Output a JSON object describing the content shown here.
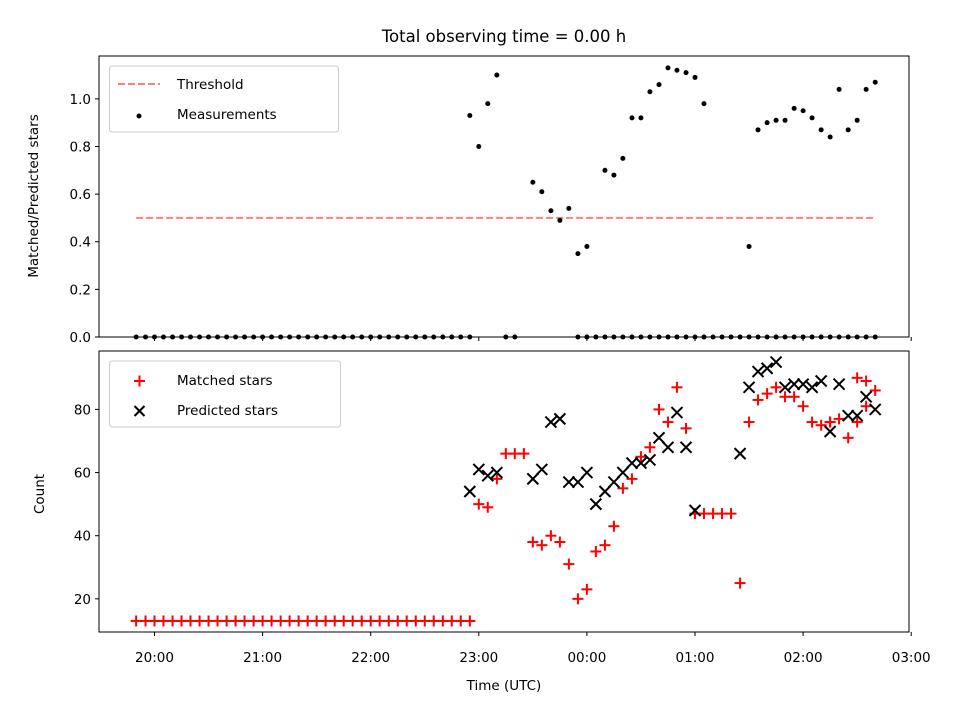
{
  "chart_data": [
    {
      "type": "scatter",
      "panel": "top",
      "title": "Total observing time = 0.00 h",
      "xlabel": "",
      "ylabel": "Matched/Predicted stars",
      "x_unit": "hours since 20:00 UTC",
      "xlim": [
        -0.42,
        7.0
      ],
      "ylim": [
        0.0,
        1.18
      ],
      "yticks": [
        0.0,
        0.2,
        0.4,
        0.6,
        0.8,
        1.0
      ],
      "ytick_labels": [
        "0.0",
        "0.2",
        "0.4",
        "0.6",
        "0.8",
        "1.0"
      ],
      "xtick_labels_visible": false,
      "grid": false,
      "legend": {
        "placement": "upper-left",
        "entries": [
          {
            "label": "Threshold",
            "style": "dashed-line",
            "color": "#ff7f7f"
          },
          {
            "label": "Measurements",
            "style": "dot",
            "color": "#000000"
          }
        ]
      },
      "threshold": {
        "name": "Threshold",
        "value": 0.5,
        "x_range": [
          -0.17,
          6.67
        ],
        "color": "#ff7f7f"
      },
      "series": [
        {
          "name": "Measurements",
          "color": "#000000",
          "marker": "dot",
          "x": [
            -0.17,
            -0.083,
            0.0,
            0.083,
            0.167,
            0.25,
            0.333,
            0.417,
            0.5,
            0.583,
            0.667,
            0.75,
            0.833,
            0.917,
            1.0,
            1.083,
            1.167,
            1.25,
            1.333,
            1.417,
            1.5,
            1.583,
            1.667,
            1.75,
            1.833,
            1.917,
            2.0,
            2.083,
            2.167,
            2.25,
            2.333,
            2.417,
            2.5,
            2.583,
            2.667,
            2.75,
            2.833,
            2.917,
            3.25,
            3.333,
            3.917,
            4.0,
            4.083,
            4.167,
            4.25,
            4.333,
            4.417,
            4.5,
            4.583,
            4.667,
            4.75,
            4.833,
            4.917,
            5.0,
            5.083,
            5.167,
            5.25,
            5.333,
            5.417,
            5.5,
            5.583,
            5.667,
            5.75,
            5.833,
            5.917,
            6.0,
            6.083,
            6.167,
            6.25,
            6.333,
            6.417,
            6.5,
            6.583,
            6.667
          ],
          "y": [
            0,
            0,
            0,
            0,
            0,
            0,
            0,
            0,
            0,
            0,
            0,
            0,
            0,
            0,
            0,
            0,
            0,
            0,
            0,
            0,
            0,
            0,
            0,
            0,
            0,
            0,
            0,
            0,
            0,
            0,
            0,
            0,
            0,
            0,
            0,
            0,
            0,
            0,
            0,
            0,
            0,
            0,
            0,
            0,
            0,
            0,
            0,
            0,
            0,
            0,
            0,
            0,
            0,
            0,
            0,
            0,
            0,
            0,
            0,
            0,
            0,
            0,
            0,
            0,
            0,
            0,
            0,
            0,
            0,
            0,
            0,
            0,
            0,
            0
          ]
        },
        {
          "name": "Measurements (active)",
          "color": "#000000",
          "marker": "dot",
          "x": [
            2.917,
            3.0,
            3.083,
            3.167,
            3.5,
            3.583,
            3.667,
            3.75,
            3.833,
            3.917,
            4.0,
            4.167,
            4.25,
            4.333,
            4.417,
            4.5,
            4.583,
            4.667,
            4.75,
            4.833,
            4.917,
            5.0,
            5.083,
            5.5,
            5.583,
            5.667,
            5.75,
            5.833,
            5.917,
            6.0,
            6.083,
            6.167,
            6.25,
            6.333,
            6.417,
            6.5,
            6.583,
            6.667
          ],
          "y": [
            0.93,
            0.8,
            0.98,
            1.1,
            0.65,
            0.61,
            0.53,
            0.49,
            0.54,
            0.35,
            0.38,
            0.7,
            0.68,
            0.75,
            0.92,
            0.92,
            1.03,
            1.06,
            1.13,
            1.12,
            1.11,
            1.09,
            0.98,
            0.38,
            0.87,
            0.9,
            0.91,
            0.91,
            0.96,
            0.95,
            0.92,
            0.87,
            0.84,
            1.04,
            0.87,
            0.91,
            1.04,
            1.07
          ]
        }
      ]
    },
    {
      "type": "scatter",
      "panel": "bottom",
      "title": "",
      "xlabel": "Time (UTC)",
      "ylabel": "Count",
      "x_unit": "hours since 20:00 UTC",
      "xlim": [
        -0.42,
        7.0
      ],
      "ylim": [
        9.5,
        98.5
      ],
      "yticks": [
        20,
        40,
        60,
        80
      ],
      "ytick_labels": [
        "20",
        "40",
        "60",
        "80"
      ],
      "xticks": [
        0,
        1,
        2,
        3,
        4,
        5,
        6,
        7
      ],
      "xtick_labels": [
        "20:00",
        "21:00",
        "22:00",
        "23:00",
        "00:00",
        "01:00",
        "02:00",
        "03:00"
      ],
      "grid": false,
      "legend": {
        "placement": "upper-left",
        "entries": [
          {
            "label": "Matched stars",
            "style": "plus",
            "color": "#ff0000"
          },
          {
            "label": "Predicted stars",
            "style": "x",
            "color": "#000000"
          }
        ]
      },
      "series": [
        {
          "name": "Matched stars",
          "color": "#ff0000",
          "marker": "plus",
          "x": [
            -0.17,
            -0.083,
            0.0,
            0.083,
            0.167,
            0.25,
            0.333,
            0.417,
            0.5,
            0.583,
            0.667,
            0.75,
            0.833,
            0.917,
            1.0,
            1.083,
            1.167,
            1.25,
            1.333,
            1.417,
            1.5,
            1.583,
            1.667,
            1.75,
            1.833,
            1.917,
            2.0,
            2.083,
            2.167,
            2.25,
            2.333,
            2.417,
            2.5,
            2.583,
            2.667,
            2.75,
            2.833,
            2.917,
            3.0,
            3.083,
            3.167,
            3.25,
            3.333,
            3.417,
            3.5,
            3.583,
            3.667,
            3.75,
            3.833,
            3.917,
            4.0,
            4.083,
            4.167,
            4.25,
            4.333,
            4.417,
            4.5,
            4.583,
            4.667,
            4.75,
            4.833,
            4.917,
            5.0,
            5.083,
            5.167,
            5.25,
            5.333,
            5.417,
            5.5,
            5.583,
            5.667,
            5.75,
            5.833,
            5.917,
            6.0,
            6.083,
            6.167,
            6.25,
            6.333,
            6.417,
            6.5,
            6.583,
            6.667,
            6.583,
            6.5,
            6.25
          ],
          "y": [
            13,
            13,
            13,
            13,
            13,
            13,
            13,
            13,
            13,
            13,
            13,
            13,
            13,
            13,
            13,
            13,
            13,
            13,
            13,
            13,
            13,
            13,
            13,
            13,
            13,
            13,
            13,
            13,
            13,
            13,
            13,
            13,
            13,
            13,
            13,
            13,
            13,
            13,
            50,
            49,
            58,
            66,
            66,
            66,
            38,
            37,
            40,
            38,
            31,
            20,
            23,
            35,
            37,
            43,
            55,
            58,
            65,
            68,
            80,
            76,
            87,
            74,
            47,
            47,
            47,
            47,
            47,
            25,
            76,
            83,
            85,
            87,
            84,
            84,
            81,
            76,
            75,
            76,
            77,
            71,
            90,
            89,
            86,
            81,
            76,
            76
          ]
        },
        {
          "name": "Predicted stars",
          "color": "#000000",
          "marker": "x",
          "x": [
            2.917,
            3.0,
            3.083,
            3.167,
            3.5,
            3.583,
            3.667,
            3.75,
            3.833,
            3.917,
            4.0,
            4.083,
            4.167,
            4.25,
            4.333,
            4.417,
            4.5,
            4.583,
            4.667,
            4.75,
            4.833,
            4.917,
            5.0,
            5.417,
            5.5,
            5.583,
            5.667,
            5.75,
            5.833,
            5.917,
            6.0,
            6.083,
            6.167,
            6.25,
            6.333,
            6.417,
            6.5,
            6.583,
            6.667
          ],
          "y": [
            54,
            61,
            59,
            60,
            58,
            61,
            76,
            77,
            57,
            57,
            60,
            50,
            54,
            57,
            60,
            63,
            63,
            64,
            71,
            68,
            79,
            68,
            48,
            66,
            87,
            92,
            93,
            95,
            87,
            88,
            88,
            87,
            89,
            73,
            88,
            78,
            78,
            84,
            80
          ]
        }
      ]
    }
  ]
}
